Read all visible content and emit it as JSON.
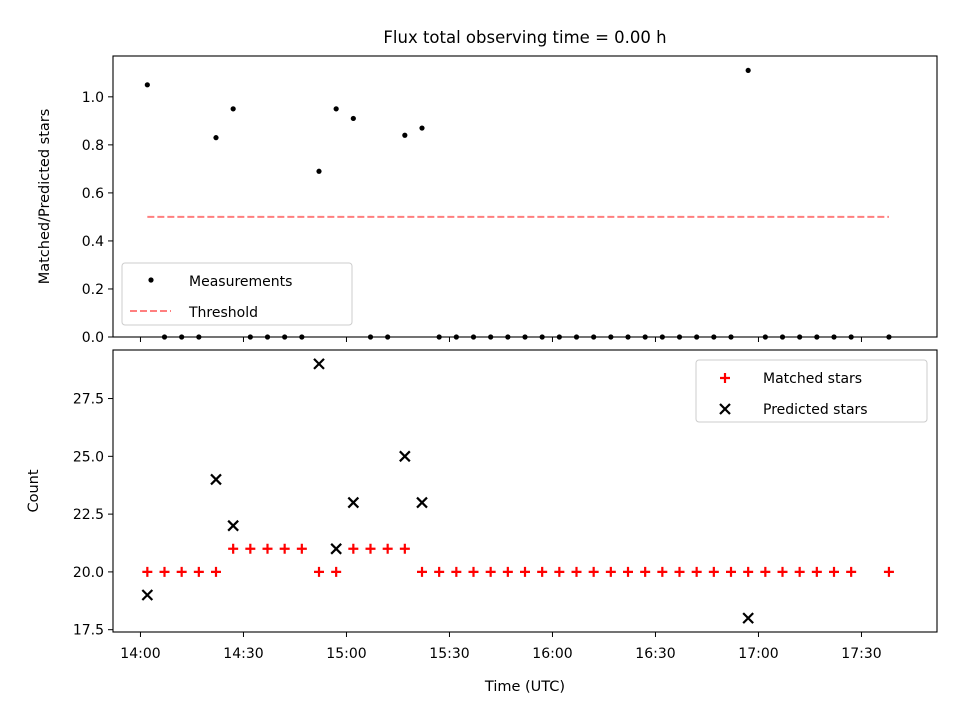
{
  "figure": {
    "title": "Flux total observing time = 0.00 h"
  },
  "chart_data": [
    {
      "type": "scatter",
      "title": "Flux total observing time = 0.00 h",
      "xlabel": "",
      "ylabel": "Matched/Predicted stars",
      "xlim": [
        "13:52",
        "17:52"
      ],
      "ylim": [
        0,
        1.17
      ],
      "yticks": [
        0.0,
        0.2,
        0.4,
        0.6,
        0.8,
        1.0
      ],
      "ytick_labels": [
        "0.0",
        "0.2",
        "0.4",
        "0.6",
        "0.8",
        "1.0"
      ],
      "legend": {
        "position": "lower-left",
        "entries": [
          "Measurements",
          "Threshold"
        ]
      },
      "series": [
        {
          "name": "Measurements",
          "marker": "dot",
          "color": "#000000",
          "x": [
            "14:02",
            "14:07",
            "14:12",
            "14:17",
            "14:22",
            "14:27",
            "14:32",
            "14:37",
            "14:42",
            "14:47",
            "14:52",
            "14:57",
            "15:02",
            "15:07",
            "15:12",
            "15:17",
            "15:22",
            "15:27",
            "15:32",
            "15:37",
            "15:42",
            "15:47",
            "15:52",
            "15:57",
            "16:02",
            "16:07",
            "16:12",
            "16:17",
            "16:22",
            "16:27",
            "16:32",
            "16:37",
            "16:42",
            "16:47",
            "16:52",
            "16:57",
            "17:02",
            "17:07",
            "17:12",
            "17:17",
            "17:22",
            "17:27",
            "17:38"
          ],
          "y": [
            1.05,
            0,
            0,
            0,
            0.83,
            0.95,
            0,
            0,
            0,
            0,
            0.69,
            0.95,
            0.91,
            0,
            0,
            0.84,
            0.87,
            0,
            0,
            0,
            0,
            0,
            0,
            0,
            0,
            0,
            0,
            0,
            0,
            0,
            0,
            0,
            0,
            0,
            0,
            1.11,
            0,
            0,
            0,
            0,
            0,
            0,
            0
          ]
        },
        {
          "name": "Threshold",
          "style": "dashed",
          "color": "#ff7f7f",
          "x": [
            "14:02",
            "17:38"
          ],
          "y": [
            0.5,
            0.5
          ]
        }
      ]
    },
    {
      "type": "scatter",
      "title": "",
      "xlabel": "Time (UTC)",
      "ylabel": "Count",
      "xlim": [
        "13:52",
        "17:52"
      ],
      "ylim": [
        17.4,
        29.6
      ],
      "xticks": [
        "14:00",
        "14:30",
        "15:00",
        "15:30",
        "16:00",
        "16:30",
        "17:00",
        "17:30"
      ],
      "yticks": [
        17.5,
        20.0,
        22.5,
        25.0,
        27.5
      ],
      "ytick_labels": [
        "17.5",
        "20.0",
        "22.5",
        "25.0",
        "27.5"
      ],
      "legend": {
        "position": "top-right",
        "entries": [
          "Matched stars",
          "Predicted stars"
        ]
      },
      "series": [
        {
          "name": "Matched stars",
          "marker": "plus",
          "color": "#ff0000",
          "x": [
            "14:02",
            "14:07",
            "14:12",
            "14:17",
            "14:22",
            "14:27",
            "14:32",
            "14:37",
            "14:42",
            "14:47",
            "14:52",
            "14:57",
            "15:02",
            "15:07",
            "15:12",
            "15:17",
            "15:22",
            "15:27",
            "15:32",
            "15:37",
            "15:42",
            "15:47",
            "15:52",
            "15:57",
            "16:02",
            "16:07",
            "16:12",
            "16:17",
            "16:22",
            "16:27",
            "16:32",
            "16:37",
            "16:42",
            "16:47",
            "16:52",
            "16:57",
            "17:02",
            "17:07",
            "17:12",
            "17:17",
            "17:22",
            "17:27",
            "17:38"
          ],
          "y": [
            20,
            20,
            20,
            20,
            20,
            21,
            21,
            21,
            21,
            21,
            20,
            20,
            21,
            21,
            21,
            21,
            20,
            20,
            20,
            20,
            20,
            20,
            20,
            20,
            20,
            20,
            20,
            20,
            20,
            20,
            20,
            20,
            20,
            20,
            20,
            20,
            20,
            20,
            20,
            20,
            20,
            20,
            20
          ]
        },
        {
          "name": "Predicted stars",
          "marker": "x",
          "color": "#000000",
          "x": [
            "14:02",
            "14:22",
            "14:27",
            "14:52",
            "14:57",
            "15:02",
            "15:17",
            "15:22",
            "16:57"
          ],
          "y": [
            19,
            24,
            22,
            29,
            21,
            23,
            25,
            23,
            18
          ]
        }
      ]
    }
  ]
}
